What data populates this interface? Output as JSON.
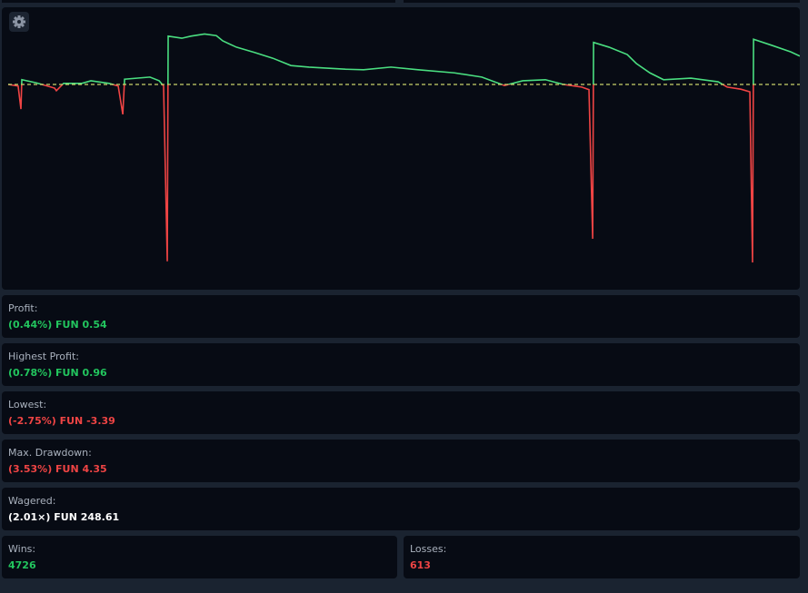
{
  "chart_data": {
    "type": "line",
    "x": [
      0,
      67,
      86,
      92,
      190,
      313,
      325,
      374,
      497,
      558,
      680,
      742,
      773,
      785,
      956,
      1018,
      1048,
      1073,
      1079,
      1171,
      1232,
      1324,
      1404,
      1447,
      1539,
      1661,
      1784,
      1907,
      2029,
      2274,
      2397,
      2581,
      2765,
      3010,
      3194,
      3347,
      3470,
      3623,
      3745,
      3868,
      3917,
      3942,
      3948,
      4052,
      4175,
      4236,
      4328,
      4420,
      4604,
      4788,
      4849,
      4941,
      5002,
      5020,
      5027,
      5155,
      5278,
      5339
    ],
    "values": [
      0,
      -0.03,
      -0.47,
      0.09,
      0.03,
      -0.07,
      -0.12,
      0.02,
      0.02,
      0.07,
      0.02,
      -0.03,
      -0.57,
      0.1,
      0.14,
      0.07,
      -0.03,
      -3.37,
      0.92,
      0.88,
      0.92,
      0.96,
      0.93,
      0.83,
      0.71,
      0.61,
      0.5,
      0.36,
      0.33,
      0.29,
      0.28,
      0.33,
      0.28,
      0.22,
      0.14,
      -0.02,
      0.07,
      0.09,
      0,
      -0.05,
      -0.1,
      -2.94,
      0.8,
      0.71,
      0.57,
      0.4,
      0.22,
      0.09,
      0.12,
      0.05,
      -0.05,
      -0.09,
      -0.14,
      -3.39,
      0.86,
      0.74,
      0.62,
      0.54
    ],
    "xlim": [
      0,
      5339
    ],
    "ylim": [
      -3.5,
      1.2
    ],
    "reference_line": 0,
    "colors": {
      "positive": "#4ade80",
      "negative": "#ef4444",
      "reference": "#c9d46a"
    }
  },
  "stats": [
    {
      "label": "Profit:",
      "value": "(0.44%) FUN 0.54",
      "color": "#22c55e"
    },
    {
      "label": "Highest Profit:",
      "value": "(0.78%) FUN 0.96",
      "color": "#22c55e"
    },
    {
      "label": "Lowest:",
      "value": "(-2.75%) FUN -3.39",
      "color": "#ef4444"
    },
    {
      "label": "Max. Drawdown:",
      "value": "(3.53%) FUN 4.35",
      "color": "#ef4444"
    },
    {
      "label": "Wagered:",
      "value": "(2.01×) FUN 248.61",
      "color": "#ffffff"
    }
  ],
  "wins": {
    "label": "Wins:",
    "value": 4726,
    "color": "#22c55e"
  },
  "losses": {
    "label": "Losses:",
    "value": 613,
    "color": "#ef4444"
  }
}
